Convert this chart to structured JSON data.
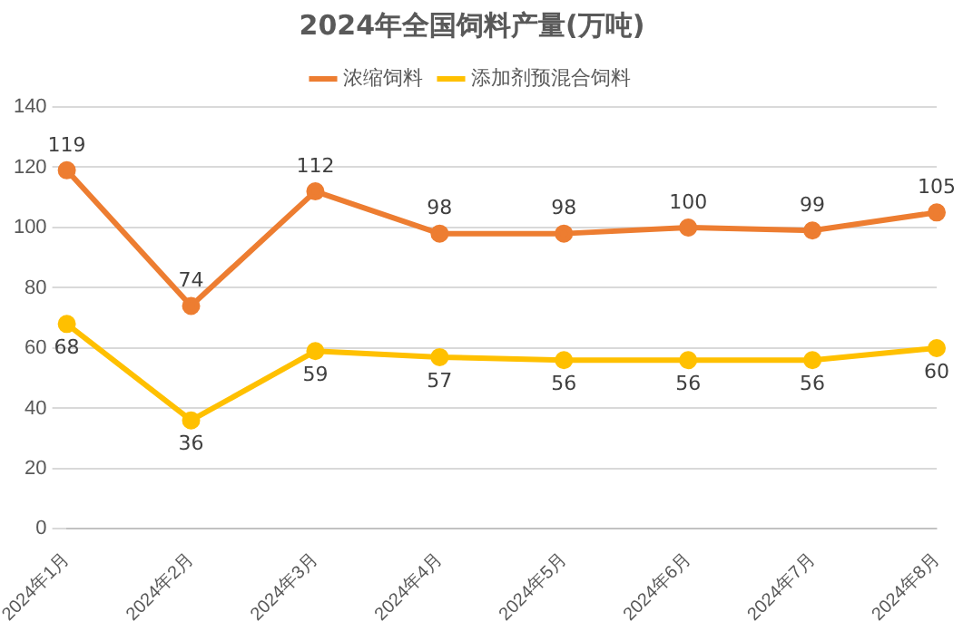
{
  "chart_data": {
    "type": "line",
    "title": "2024年全国饲料产量(万吨)",
    "categories": [
      "2024年1月",
      "2024年2月",
      "2024年3月",
      "2024年4月",
      "2024年5月",
      "2024年6月",
      "2024年7月",
      "2024年8月"
    ],
    "series": [
      {
        "name": "浓缩饲料",
        "color": "#ed7d31",
        "values": [
          119,
          74,
          112,
          98,
          98,
          100,
          99,
          105
        ]
      },
      {
        "name": "添加剂预混合饲料",
        "color": "#ffc000",
        "values": [
          68,
          36,
          59,
          57,
          56,
          56,
          56,
          60
        ]
      }
    ],
    "ylim": [
      0,
      140
    ],
    "yticks": [
      0,
      20,
      40,
      60,
      80,
      100,
      120,
      140
    ],
    "grid": "y",
    "legend": "top",
    "marker": "circle",
    "line_style": "solid",
    "data_labels": true
  }
}
